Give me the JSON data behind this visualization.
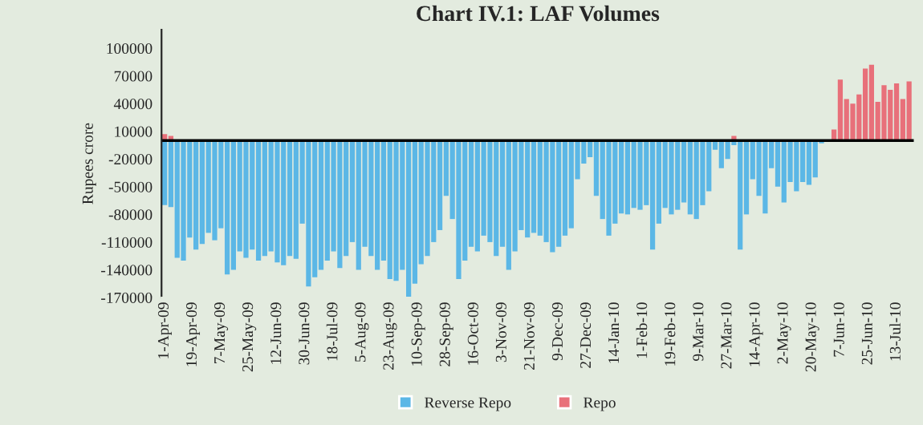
{
  "chart_data": {
    "type": "bar",
    "title": "Chart IV.1: LAF Volumes",
    "ylabel": "Rupees crore",
    "x": [
      "2009-04-01",
      "2009-04-05",
      "2009-04-09",
      "2009-04-13",
      "2009-04-17",
      "2009-04-21",
      "2009-04-25",
      "2009-04-29",
      "2009-05-03",
      "2009-05-07",
      "2009-05-11",
      "2009-05-15",
      "2009-05-19",
      "2009-05-23",
      "2009-05-27",
      "2009-05-31",
      "2009-06-04",
      "2009-06-08",
      "2009-06-12",
      "2009-06-16",
      "2009-06-20",
      "2009-06-24",
      "2009-06-28",
      "2009-07-02",
      "2009-07-06",
      "2009-07-10",
      "2009-07-14",
      "2009-07-18",
      "2009-07-22",
      "2009-07-26",
      "2009-07-30",
      "2009-08-03",
      "2009-08-07",
      "2009-08-11",
      "2009-08-15",
      "2009-08-19",
      "2009-08-23",
      "2009-08-27",
      "2009-08-31",
      "2009-09-04",
      "2009-09-08",
      "2009-09-12",
      "2009-09-16",
      "2009-09-20",
      "2009-09-24",
      "2009-09-28",
      "2009-10-02",
      "2009-10-06",
      "2009-10-10",
      "2009-10-14",
      "2009-10-18",
      "2009-10-22",
      "2009-10-26",
      "2009-10-30",
      "2009-11-03",
      "2009-11-07",
      "2009-11-11",
      "2009-11-15",
      "2009-11-19",
      "2009-11-23",
      "2009-11-27",
      "2009-12-01",
      "2009-12-05",
      "2009-12-09",
      "2009-12-13",
      "2009-12-17",
      "2009-12-21",
      "2009-12-25",
      "2009-12-29",
      "2010-01-02",
      "2010-01-06",
      "2010-01-10",
      "2010-01-14",
      "2010-01-18",
      "2010-01-22",
      "2010-01-26",
      "2010-01-30",
      "2010-02-03",
      "2010-02-07",
      "2010-02-11",
      "2010-02-15",
      "2010-02-19",
      "2010-02-23",
      "2010-02-27",
      "2010-03-03",
      "2010-03-07",
      "2010-03-11",
      "2010-03-15",
      "2010-03-19",
      "2010-03-23",
      "2010-03-27",
      "2010-03-31",
      "2010-04-04",
      "2010-04-08",
      "2010-04-12",
      "2010-04-16",
      "2010-04-20",
      "2010-04-24",
      "2010-04-28",
      "2010-05-02",
      "2010-05-06",
      "2010-05-10",
      "2010-05-14",
      "2010-05-18",
      "2010-05-22",
      "2010-05-26",
      "2010-05-30",
      "2010-06-03",
      "2010-06-07",
      "2010-06-11",
      "2010-06-15",
      "2010-06-19",
      "2010-06-23",
      "2010-06-27",
      "2010-07-01",
      "2010-07-05",
      "2010-07-09",
      "2010-07-13",
      "2010-07-17",
      "2010-07-21"
    ],
    "series": [
      {
        "name": "Reverse Repo",
        "color": "#5bb7e6",
        "values": [
          -70000,
          -72000,
          -127000,
          -130000,
          -105000,
          -118000,
          -112000,
          -100000,
          -108000,
          -95000,
          -145000,
          -140000,
          -120000,
          -127000,
          -118000,
          -130000,
          -125000,
          -120000,
          -132000,
          -135000,
          -125000,
          -128000,
          -90000,
          -158000,
          -148000,
          -140000,
          -130000,
          -120000,
          -138000,
          -125000,
          -110000,
          -140000,
          -115000,
          -125000,
          -140000,
          -130000,
          -150000,
          -152000,
          -140000,
          -170000,
          -155000,
          -134000,
          -125000,
          -110000,
          -97000,
          -60000,
          -85000,
          -150000,
          -130000,
          -115000,
          -120000,
          -103000,
          -110000,
          -125000,
          -115000,
          -140000,
          -120000,
          -97000,
          -105000,
          -100000,
          -103000,
          -110000,
          -121000,
          -115000,
          -103000,
          -95000,
          -42000,
          -25000,
          -18000,
          -60000,
          -85000,
          -103000,
          -90000,
          -79000,
          -80000,
          -73000,
          -75000,
          -70000,
          -118000,
          -90000,
          -73000,
          -80000,
          -75000,
          -67000,
          -80000,
          -85000,
          -70000,
          -55000,
          -10000,
          -30000,
          -20000,
          -5000,
          -118000,
          -80000,
          -42000,
          -60000,
          -79000,
          -30000,
          -50000,
          -67000,
          -45000,
          -55000,
          -45000,
          -48000,
          -40000,
          -3000,
          null,
          null,
          null,
          null,
          null,
          null,
          null,
          null,
          null,
          null,
          null,
          null,
          null,
          null
        ]
      },
      {
        "name": "Repo",
        "color": "#e8707a",
        "values": [
          7000,
          5000,
          null,
          null,
          null,
          null,
          null,
          null,
          null,
          null,
          null,
          null,
          null,
          null,
          null,
          null,
          null,
          null,
          null,
          null,
          null,
          null,
          null,
          null,
          null,
          null,
          null,
          null,
          null,
          null,
          null,
          null,
          null,
          null,
          null,
          null,
          null,
          null,
          null,
          null,
          null,
          null,
          null,
          null,
          null,
          null,
          null,
          null,
          null,
          null,
          null,
          null,
          null,
          null,
          null,
          null,
          null,
          null,
          null,
          null,
          null,
          null,
          null,
          null,
          null,
          null,
          null,
          null,
          null,
          null,
          null,
          null,
          null,
          null,
          null,
          null,
          null,
          null,
          null,
          null,
          null,
          null,
          null,
          null,
          null,
          null,
          null,
          null,
          null,
          null,
          null,
          5000,
          null,
          null,
          null,
          null,
          null,
          null,
          null,
          null,
          null,
          null,
          null,
          null,
          null,
          null,
          null,
          12000,
          66000,
          45000,
          40000,
          50000,
          78000,
          82000,
          42000,
          60000,
          55000,
          62000,
          45000,
          64000
        ]
      }
    ],
    "xlim": [
      "2009-03-30",
      "2010-07-24"
    ],
    "xticks": [
      {
        "value": "2009-04-01",
        "label": "1-Apr-09"
      },
      {
        "value": "2009-04-19",
        "label": "19-Apr-09"
      },
      {
        "value": "2009-05-07",
        "label": "7-May-09"
      },
      {
        "value": "2009-05-25",
        "label": "25-May-09"
      },
      {
        "value": "2009-06-12",
        "label": "12-Jun-09"
      },
      {
        "value": "2009-06-30",
        "label": "30-Jun-09"
      },
      {
        "value": "2009-07-18",
        "label": "18-Jul-09"
      },
      {
        "value": "2009-08-05",
        "label": "5-Aug-09"
      },
      {
        "value": "2009-08-23",
        "label": "23-Aug-09"
      },
      {
        "value": "2009-09-10",
        "label": "10-Sep-09"
      },
      {
        "value": "2009-09-28",
        "label": "28-Sep-09"
      },
      {
        "value": "2009-10-16",
        "label": "16-Oct-09"
      },
      {
        "value": "2009-11-03",
        "label": "3-Nov-09"
      },
      {
        "value": "2009-11-21",
        "label": "21-Nov-09"
      },
      {
        "value": "2009-12-09",
        "label": "9-Dec-09"
      },
      {
        "value": "2009-12-27",
        "label": "27-Dec-09"
      },
      {
        "value": "2010-01-14",
        "label": "14-Jan-10"
      },
      {
        "value": "2010-02-01",
        "label": "1-Feb-10"
      },
      {
        "value": "2010-02-19",
        "label": "19-Feb-10"
      },
      {
        "value": "2010-03-09",
        "label": "9-Mar-10"
      },
      {
        "value": "2010-03-27",
        "label": "27-Mar-10"
      },
      {
        "value": "2010-04-14",
        "label": "14-Apr-10"
      },
      {
        "value": "2010-05-02",
        "label": "2-May-10"
      },
      {
        "value": "2010-05-20",
        "label": "20-May-10"
      },
      {
        "value": "2010-06-07",
        "label": "7-Jun-10"
      },
      {
        "value": "2010-06-25",
        "label": "25-Jun-10"
      },
      {
        "value": "2010-07-13",
        "label": "13-Jul-10"
      }
    ],
    "ylim": [
      -170000,
      120000
    ],
    "yticks": [
      -170000,
      -140000,
      -110000,
      -80000,
      -50000,
      -20000,
      10000,
      40000,
      70000,
      100000
    ],
    "ref_lines": [
      {
        "axis": "y",
        "value": 0,
        "color": "#000000"
      }
    ],
    "legend": "bottom",
    "grid": false
  }
}
